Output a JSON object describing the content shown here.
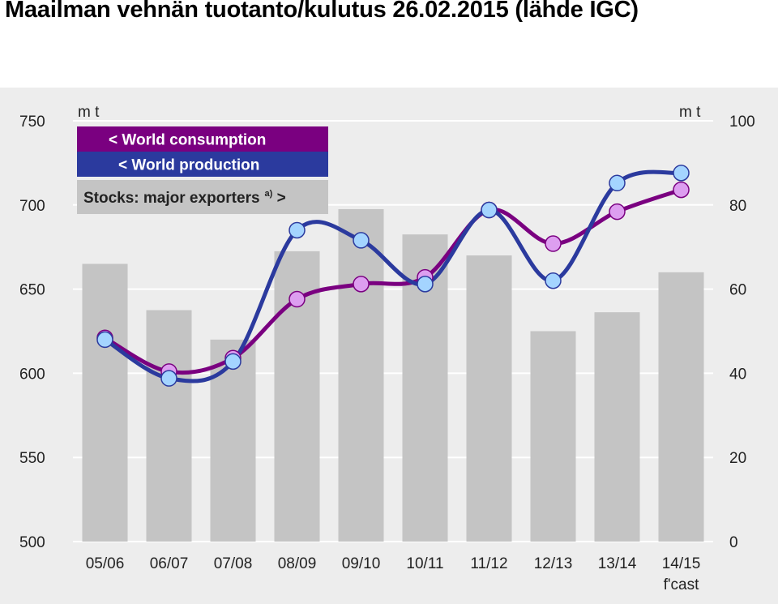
{
  "page": {
    "title": "Maailman vehnän tuotanto/kulutus 26.02.2015 (lähde IGC)"
  },
  "chart_data": {
    "type": "bar+line",
    "left_unit": "m t",
    "right_unit": "m t",
    "categories": [
      "05/06",
      "06/07",
      "07/08",
      "08/09",
      "09/10",
      "10/11",
      "11/12",
      "12/13",
      "13/14",
      "14/15"
    ],
    "category_note": "f'cast",
    "left_axis": {
      "min": 500,
      "max": 750,
      "ticks": [
        500,
        550,
        600,
        650,
        700,
        750
      ]
    },
    "right_axis": {
      "min": 0,
      "max": 100,
      "ticks": [
        0,
        20,
        40,
        60,
        80,
        100
      ]
    },
    "grid": true,
    "legend": {
      "placement": "top-left",
      "entries": [
        {
          "label": "< World consumption",
          "color": "#7a0080"
        },
        {
          "label": "< World production",
          "color": "#2b3a9e"
        },
        {
          "label": "Stocks: major exporters",
          "superscript": "a)",
          "suffix": " >",
          "color": "#c4c4c4"
        }
      ]
    },
    "series": [
      {
        "name": "Stocks: major exporters",
        "kind": "bar",
        "axis": "right",
        "color": "#c4c4c4",
        "values": [
          66,
          55,
          48,
          69,
          79,
          73,
          68,
          50,
          54.5,
          64
        ]
      },
      {
        "name": "World consumption",
        "kind": "line",
        "axis": "left",
        "color": "#7a0080",
        "marker_fill": "#dd9ef0",
        "values": [
          621,
          601,
          609,
          644,
          653,
          657,
          697,
          677,
          696,
          709
        ]
      },
      {
        "name": "World production",
        "kind": "line",
        "axis": "left",
        "color": "#2b3a9e",
        "marker_fill": "#a4d4ff",
        "values": [
          620,
          597,
          607,
          685,
          679,
          653,
          697,
          655,
          713,
          719
        ]
      }
    ]
  }
}
